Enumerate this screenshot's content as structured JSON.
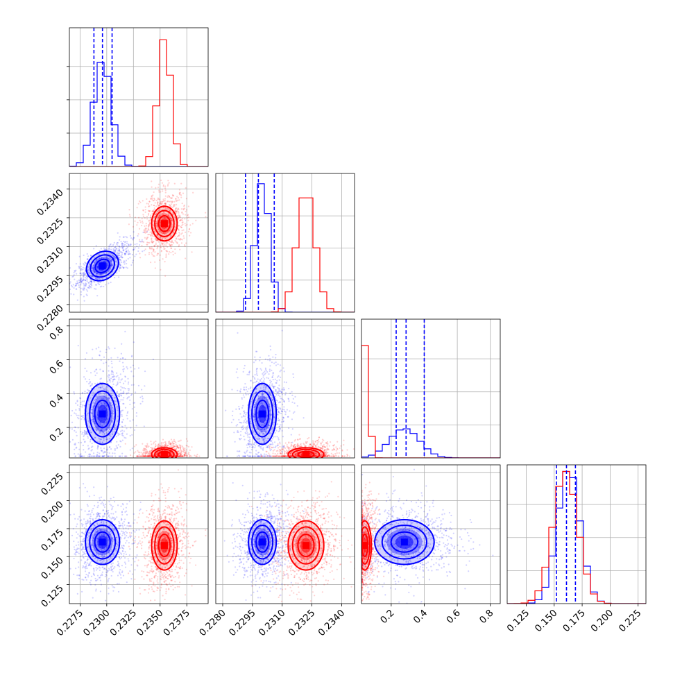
{
  "chart_data": {
    "type": "corner",
    "grid": true,
    "series": [
      {
        "color": "#0000ff",
        "means": [
          0.2296,
          0.23,
          0.28,
          0.163
        ],
        "sds": [
          0.0008,
          0.00035,
          0.09,
          0.01
        ],
        "quantile_lines": [
          [
            0.2288,
            0.2296,
            0.2305
          ],
          [
            0.22915,
            0.2298,
            0.2306
          ],
          [
            0.23,
            0.29,
            0.4
          ],
          [
            0.152,
            0.161,
            0.169
          ]
        ],
        "hist_peaks": [
          0.78,
          1.0,
          0.22,
          1.0
        ]
      },
      {
        "color": "#ff0000",
        "means": [
          0.2354,
          0.2322,
          0.04,
          0.16
        ],
        "sds": [
          0.0006,
          0.00045,
          0.02,
          0.011
        ],
        "quantile_lines": [],
        "hist_peaks": [
          0.95,
          0.89,
          0.85,
          1.0
        ]
      }
    ],
    "panels": [
      {
        "row": 0,
        "col": 0,
        "xlim": [
          0.2265,
          0.2395
        ],
        "ylim": [
          0,
          1.04
        ]
      },
      {
        "row": 1,
        "col": 0,
        "xlim": [
          0.2265,
          0.2395
        ],
        "ylim": [
          0.2276,
          0.2348
        ]
      },
      {
        "row": 1,
        "col": 1,
        "xlim": [
          0.22765,
          0.23465
        ],
        "ylim": [
          0,
          1.08
        ]
      },
      {
        "row": 2,
        "col": 0,
        "xlim": [
          0.2265,
          0.2395
        ],
        "ylim": [
          0.02,
          0.84
        ]
      },
      {
        "row": 2,
        "col": 1,
        "xlim": [
          0.22765,
          0.23465
        ],
        "ylim": [
          0.02,
          0.84
        ]
      },
      {
        "row": 2,
        "col": 2,
        "xlim": [
          0.02,
          0.86
        ],
        "ylim": [
          0,
          1.05
        ]
      },
      {
        "row": 3,
        "col": 0,
        "xlim": [
          0.2265,
          0.2395
        ],
        "ylim": [
          0.108,
          0.232
        ]
      },
      {
        "row": 3,
        "col": 1,
        "xlim": [
          0.22765,
          0.23465
        ],
        "ylim": [
          0.108,
          0.232
        ]
      },
      {
        "row": 3,
        "col": 2,
        "xlim": [
          0.02,
          0.86
        ],
        "ylim": [
          0.108,
          0.232
        ]
      },
      {
        "row": 3,
        "col": 3,
        "xlim": [
          0.108,
          0.232
        ],
        "ylim": [
          0,
          1.05
        ]
      }
    ],
    "axis_ticks": {
      "x0": [
        "0.2275",
        "0.2300",
        "0.2325",
        "0.2350",
        "0.2375"
      ],
      "x1": [
        "0.2280",
        "0.2295",
        "0.2310",
        "0.2325",
        "0.2340"
      ],
      "x2": [
        "0.2",
        "0.4",
        "0.6",
        "0.8"
      ],
      "x3": [
        "0.125",
        "0.150",
        "0.175",
        "0.200",
        "0.225"
      ],
      "y1": [
        "0.2280",
        "0.2295",
        "0.2310",
        "0.2325",
        "0.2340"
      ],
      "y2": [
        "0.2",
        "0.4",
        "0.6",
        "0.8"
      ],
      "y3": [
        "0.125",
        "0.150",
        "0.175",
        "0.200",
        "0.225"
      ]
    },
    "hist_y_ticks": [
      0.25,
      0.5,
      0.75
    ]
  }
}
